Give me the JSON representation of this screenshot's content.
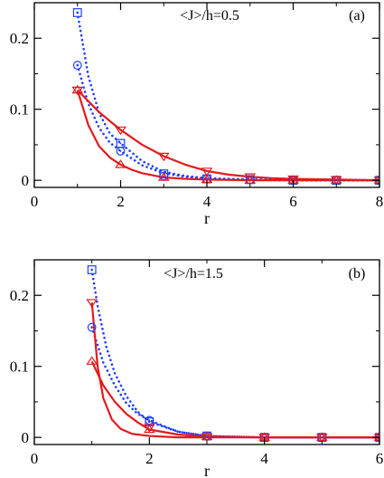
{
  "colors": {
    "red": "#e31a1c",
    "blue": "#1f3fff",
    "axes": "#000000"
  },
  "chart_data": [
    {
      "type": "line",
      "panel_label": "(a)",
      "annotation": "<J>/h=0.5",
      "xlabel": "r",
      "ylabel": "",
      "xlim": [
        0,
        8
      ],
      "ylim": [
        -0.01,
        0.25
      ],
      "x_ticks": [
        0,
        2,
        4,
        6,
        8
      ],
      "x_tick_labels": [
        "0",
        "2",
        "4",
        "6",
        "8"
      ],
      "y_ticks": [
        0,
        0.1,
        0.2
      ],
      "y_tick_labels": [
        "0",
        "0.1",
        "0.2"
      ],
      "grid": false,
      "series": [
        {
          "key": "a-square",
          "style": "points",
          "marker": "square",
          "color": "blue",
          "x": [
            1,
            2,
            3,
            4,
            5,
            6,
            7,
            8
          ],
          "y": [
            0.236,
            0.052,
            0.009,
            0.002,
            0.001,
            0.0,
            0.0,
            0.0
          ]
        },
        {
          "key": "a-circle",
          "style": "points",
          "marker": "circle",
          "color": "blue",
          "x": [
            1,
            2,
            3,
            4,
            5,
            6,
            7,
            8
          ],
          "y": [
            0.162,
            0.041,
            0.006,
            0.002,
            0.001,
            0.0,
            0.0,
            0.0
          ]
        },
        {
          "key": "a-tri-down",
          "style": "points",
          "marker": "triangle-down",
          "color": "red",
          "x": [
            1,
            2,
            3,
            4,
            5,
            6,
            7,
            8
          ],
          "y": [
            0.127,
            0.071,
            0.034,
            0.013,
            0.005,
            0.002,
            0.001,
            0.0
          ]
        },
        {
          "key": "a-tri-up",
          "style": "points",
          "marker": "triangle-up",
          "color": "red",
          "x": [
            1,
            2,
            3,
            4,
            5,
            6,
            7,
            8
          ],
          "y": [
            0.127,
            0.022,
            0.004,
            0.001,
            0.0,
            0.0,
            0.0,
            0.0
          ]
        },
        {
          "key": "a-fit-square",
          "style": "dotted",
          "color": "blue",
          "x": [
            1,
            1.25,
            1.5,
            1.75,
            2,
            2.5,
            3,
            3.5,
            4,
            5,
            6,
            7,
            8
          ],
          "y": [
            0.236,
            0.147,
            0.095,
            0.066,
            0.052,
            0.027,
            0.012,
            0.006,
            0.003,
            0.001,
            0.0,
            0.0,
            0.0
          ]
        },
        {
          "key": "a-fit-circle",
          "style": "dotted",
          "color": "blue",
          "x": [
            1,
            1.25,
            1.5,
            1.75,
            2,
            2.5,
            3,
            3.5,
            4,
            5,
            6,
            7,
            8
          ],
          "y": [
            0.162,
            0.108,
            0.074,
            0.053,
            0.041,
            0.021,
            0.01,
            0.005,
            0.002,
            0.001,
            0.0,
            0.0,
            0.0
          ]
        },
        {
          "key": "a-fit-tri-down",
          "style": "solid",
          "color": "red",
          "x": [
            1,
            1.5,
            2,
            2.5,
            3,
            3.5,
            4,
            4.5,
            5,
            5.5,
            6,
            7,
            8
          ],
          "y": [
            0.127,
            0.096,
            0.071,
            0.05,
            0.034,
            0.022,
            0.013,
            0.008,
            0.005,
            0.003,
            0.002,
            0.001,
            0.0
          ]
        },
        {
          "key": "a-fit-tri-up",
          "style": "solid",
          "color": "red",
          "x": [
            1,
            1.25,
            1.5,
            1.75,
            2,
            2.25,
            2.5,
            3,
            3.5,
            4,
            5,
            6,
            7,
            8
          ],
          "y": [
            0.127,
            0.078,
            0.048,
            0.032,
            0.022,
            0.015,
            0.01,
            0.004,
            0.002,
            0.001,
            0.0,
            0.0,
            0.0,
            0.0
          ]
        }
      ]
    },
    {
      "type": "line",
      "panel_label": "(b)",
      "annotation": "<J>/h=1.5",
      "xlabel": "r",
      "ylabel": "",
      "xlim": [
        0,
        6
      ],
      "ylim": [
        -0.01,
        0.25
      ],
      "x_ticks": [
        0,
        2,
        4,
        6
      ],
      "x_tick_labels": [
        "0",
        "2",
        "4",
        "6"
      ],
      "y_ticks": [
        0,
        0.1,
        0.2
      ],
      "y_tick_labels": [
        "0",
        "0.1",
        "0.2"
      ],
      "grid": false,
      "series": [
        {
          "key": "b-square",
          "style": "points",
          "marker": "square",
          "color": "blue",
          "x": [
            1,
            2,
            3,
            4,
            5,
            6
          ],
          "y": [
            0.236,
            0.022,
            0.002,
            0.0,
            0.0,
            0.0
          ]
        },
        {
          "key": "b-circle",
          "style": "points",
          "marker": "circle",
          "color": "blue",
          "x": [
            1,
            2,
            3,
            4,
            5,
            6
          ],
          "y": [
            0.155,
            0.024,
            0.002,
            0.0,
            0.0,
            0.0
          ]
        },
        {
          "key": "b-tri-down",
          "style": "points",
          "marker": "triangle-down",
          "color": "red",
          "x": [
            1,
            2,
            3,
            4,
            5,
            6
          ],
          "y": [
            0.19,
            0.014,
            0.001,
            0.0,
            0.0,
            0.0
          ]
        },
        {
          "key": "b-tri-up",
          "style": "points",
          "marker": "triangle-up",
          "color": "red",
          "x": [
            1,
            2,
            3,
            4,
            5,
            6
          ],
          "y": [
            0.107,
            0.011,
            0.001,
            0.0,
            0.0,
            0.0
          ]
        },
        {
          "key": "b-fit-square",
          "style": "dotted",
          "color": "blue",
          "x": [
            1,
            1.1,
            1.25,
            1.4,
            1.6,
            1.8,
            2,
            2.5,
            3,
            4,
            5,
            6
          ],
          "y": [
            0.236,
            0.185,
            0.128,
            0.09,
            0.058,
            0.036,
            0.022,
            0.008,
            0.002,
            0.0,
            0.0,
            0.0
          ]
        },
        {
          "key": "b-fit-circle",
          "style": "dotted",
          "color": "blue",
          "x": [
            1,
            1.2,
            1.4,
            1.6,
            1.8,
            2,
            2.5,
            3,
            4,
            5,
            6
          ],
          "y": [
            0.155,
            0.105,
            0.073,
            0.048,
            0.033,
            0.024,
            0.008,
            0.002,
            0.0,
            0.0,
            0.0
          ]
        },
        {
          "key": "b-fit-tri-down",
          "style": "solid",
          "color": "red",
          "x": [
            1,
            1.1,
            1.2,
            1.35,
            1.5,
            1.7,
            2,
            2.5,
            3,
            4,
            5,
            6
          ],
          "y": [
            0.19,
            0.1,
            0.055,
            0.025,
            0.012,
            0.005,
            0.002,
            0.0,
            0.0,
            0.0,
            0.0,
            0.0
          ]
        },
        {
          "key": "b-fit-tri-up",
          "style": "solid",
          "color": "red",
          "x": [
            1,
            1.2,
            1.4,
            1.6,
            1.8,
            2,
            2.5,
            3,
            4,
            5,
            6
          ],
          "y": [
            0.107,
            0.073,
            0.05,
            0.033,
            0.021,
            0.011,
            0.004,
            0.001,
            0.0,
            0.0,
            0.0
          ]
        }
      ]
    }
  ]
}
